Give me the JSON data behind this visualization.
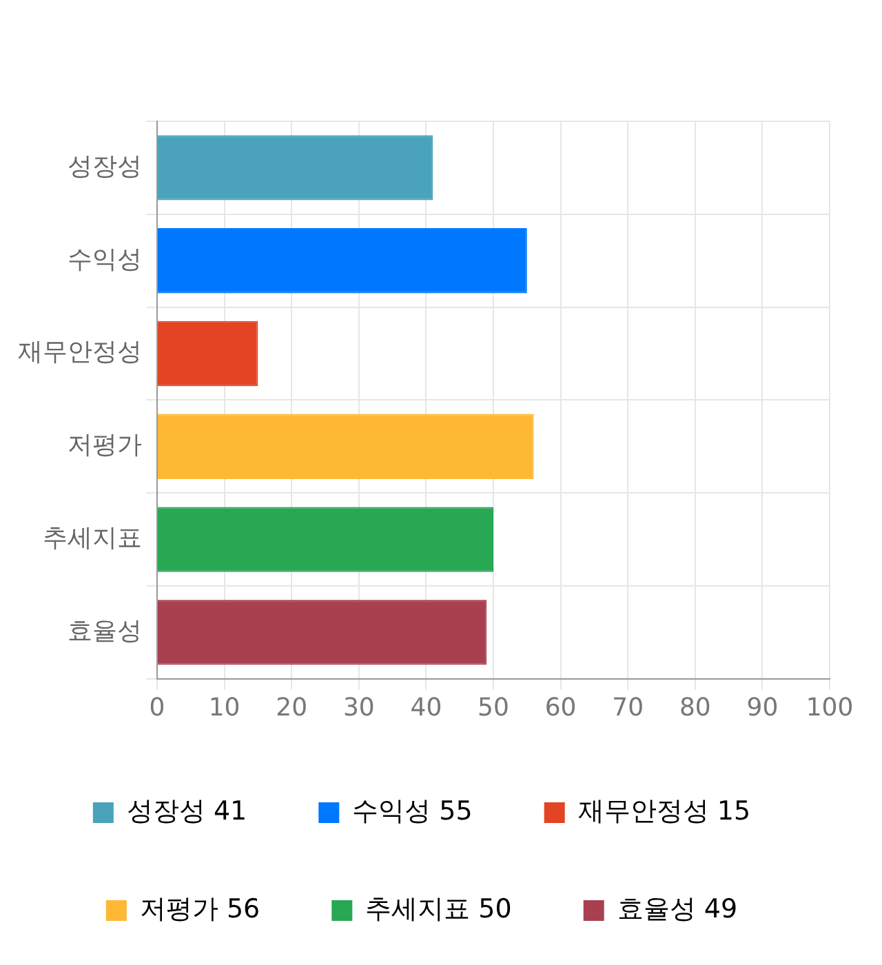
{
  "chart_data": {
    "type": "bar",
    "orientation": "horizontal",
    "stacked": true,
    "categories": [
      "성장성",
      "수익성",
      "재무안정성",
      "저평가",
      "추세지표",
      "효율성"
    ],
    "series": [
      {
        "name": "성장성 41",
        "color": "#4aa3bb",
        "values": [
          41,
          null,
          null,
          null,
          null,
          null
        ]
      },
      {
        "name": "수익성 55",
        "color": "#0077ff",
        "values": [
          null,
          55,
          null,
          null,
          null,
          null
        ]
      },
      {
        "name": "재무안정성 15",
        "color": "#e34524",
        "values": [
          null,
          null,
          15,
          null,
          null,
          null
        ]
      },
      {
        "name": "저평가 56",
        "color": "#ffb833",
        "values": [
          null,
          null,
          null,
          56,
          null,
          null
        ]
      },
      {
        "name": "추세지표 50",
        "color": "#28a853",
        "values": [
          null,
          null,
          null,
          null,
          50,
          null
        ]
      },
      {
        "name": "효율성 49",
        "color": "#a8404f",
        "values": [
          null,
          null,
          null,
          null,
          null,
          49
        ]
      }
    ],
    "xlim": [
      0,
      100
    ],
    "xticks": [
      0,
      10,
      20,
      30,
      40,
      50,
      60,
      70,
      80,
      90,
      100
    ],
    "grid": true,
    "legend": "bottom"
  }
}
